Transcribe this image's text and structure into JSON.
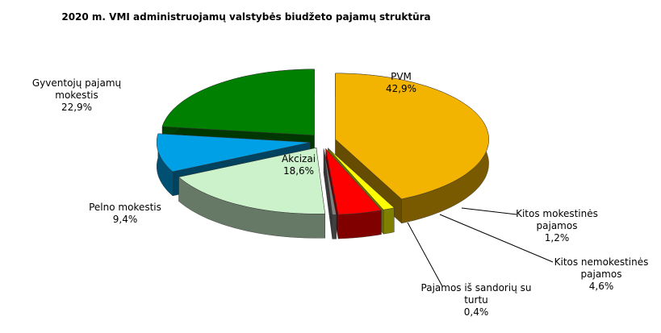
{
  "chart_data": {
    "type": "pie3d",
    "title": "2020 m. VMI administruojamų valstybės biudžeto pajamų struktūra",
    "categories": [
      "PVM",
      "Kitos mokestinės pajamos",
      "Kitos nemokestinės pajamos",
      "Pajamos iš sandorių su turtu",
      "Akcizai",
      "Pelno mokestis",
      "Gyventojų pajamų mokestis"
    ],
    "values": [
      42.9,
      1.2,
      4.6,
      0.4,
      18.6,
      9.4,
      22.9
    ],
    "value_labels": [
      "42,9%",
      "1,2%",
      "4,6%",
      "0,4%",
      "18,6%",
      "9,4%",
      "22,9%"
    ],
    "colors": [
      "#f2b400",
      "#ffff00",
      "#ff0000",
      "#808080",
      "#ccf2cc",
      "#00a0e6",
      "#008000"
    ]
  }
}
